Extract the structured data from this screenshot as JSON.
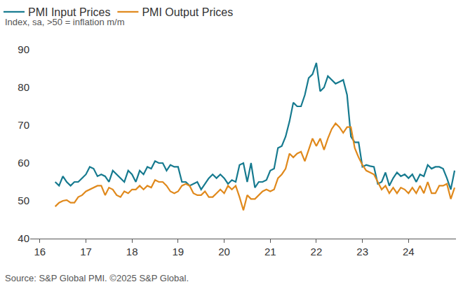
{
  "chart_data": {
    "type": "line",
    "subtitle": "Index, sa, >50 = inflation m/m",
    "source": "Source: S&P Global PMI. ©2025 S&P Global.",
    "x": [
      2016.333,
      2016.417,
      2016.5,
      2016.583,
      2016.667,
      2016.75,
      2016.833,
      2016.917,
      2017.0,
      2017.083,
      2017.167,
      2017.25,
      2017.333,
      2017.417,
      2017.5,
      2017.583,
      2017.667,
      2017.75,
      2017.833,
      2017.917,
      2018.0,
      2018.083,
      2018.167,
      2018.25,
      2018.333,
      2018.417,
      2018.5,
      2018.583,
      2018.667,
      2018.75,
      2018.833,
      2018.917,
      2019.0,
      2019.083,
      2019.167,
      2019.25,
      2019.333,
      2019.417,
      2019.5,
      2019.583,
      2019.667,
      2019.75,
      2019.833,
      2019.917,
      2020.0,
      2020.083,
      2020.167,
      2020.25,
      2020.333,
      2020.417,
      2020.5,
      2020.583,
      2020.667,
      2020.75,
      2020.833,
      2020.917,
      2021.0,
      2021.083,
      2021.167,
      2021.25,
      2021.333,
      2021.417,
      2021.5,
      2021.583,
      2021.667,
      2021.75,
      2021.833,
      2021.917,
      2022.0,
      2022.083,
      2022.167,
      2022.25,
      2022.333,
      2022.417,
      2022.5,
      2022.583,
      2022.667,
      2022.75,
      2022.833,
      2022.917,
      2023.0,
      2023.083,
      2023.167,
      2023.25,
      2023.333,
      2023.417,
      2023.5,
      2023.583,
      2023.667,
      2023.75,
      2023.833,
      2023.917,
      2024.0,
      2024.083,
      2024.167,
      2024.25,
      2024.333,
      2024.417,
      2024.5,
      2024.583,
      2024.667,
      2024.75,
      2024.833,
      2024.917,
      2025.0
    ],
    "series": [
      {
        "name": "PMI Input Prices",
        "color": "#167a8f",
        "values": [
          55,
          54,
          56.5,
          55,
          54,
          55,
          55,
          56,
          57,
          59,
          58.5,
          56.5,
          57,
          56.5,
          55,
          58,
          57,
          56,
          55,
          58,
          57,
          55,
          58,
          57,
          59,
          58.5,
          60.5,
          60,
          60,
          58,
          59.5,
          59,
          59,
          55,
          55,
          54,
          54.5,
          55,
          53,
          54.5,
          56,
          57,
          56,
          57,
          56,
          54.5,
          55.5,
          55,
          59.5,
          60,
          55,
          60,
          53.5,
          55,
          55,
          55.5,
          58,
          58.5,
          64,
          64.5,
          67,
          71,
          76,
          75,
          75,
          78,
          82.5,
          83.5,
          86.5,
          79,
          80,
          83,
          82,
          81,
          81.5,
          82,
          78,
          67,
          65.5,
          65.5,
          59,
          59.5,
          59.2,
          59,
          54.5,
          55,
          57.5,
          54,
          56,
          57.5,
          56.5,
          57,
          56,
          57,
          55,
          57,
          56.5,
          59.5,
          58.5,
          59,
          59,
          58.5,
          56,
          53,
          58
        ]
      },
      {
        "name": "PMI Output Prices",
        "color": "#e0891c",
        "values": [
          48.5,
          49.5,
          50,
          50.2,
          49.5,
          49.5,
          51,
          51.5,
          52.5,
          53,
          53.5,
          54,
          54,
          51.5,
          53.5,
          53,
          51.5,
          51,
          52.5,
          52,
          53,
          53,
          54,
          53,
          54,
          53.5,
          55.5,
          55,
          55,
          54,
          52.5,
          52,
          52.5,
          54,
          54.5,
          54,
          52,
          51.5,
          51.5,
          52.5,
          51,
          51,
          52,
          53,
          52,
          54,
          53,
          54,
          51,
          47.5,
          51.5,
          50.5,
          50.5,
          51.5,
          52.5,
          53,
          52.5,
          53,
          56,
          57,
          58.5,
          62.5,
          61.5,
          62.5,
          63,
          60.5,
          63.5,
          66.5,
          64.5,
          66.5,
          63.5,
          66.5,
          69,
          70.5,
          69.5,
          68,
          69.5,
          69.5,
          64,
          61.5,
          59.5,
          58,
          57.5,
          57,
          55,
          53,
          54,
          52,
          53.5,
          52,
          53.5,
          53,
          52,
          53.5,
          52,
          54,
          52,
          55,
          52,
          52,
          54,
          54,
          54.5,
          50.5,
          53.5
        ]
      }
    ],
    "xlim": [
      2015.79,
      2025.03
    ],
    "xticks": [
      {
        "value": 2016,
        "label": "16"
      },
      {
        "value": 2017,
        "label": "17"
      },
      {
        "value": 2018,
        "label": "18"
      },
      {
        "value": 2019,
        "label": "19"
      },
      {
        "value": 2020,
        "label": "20"
      },
      {
        "value": 2021,
        "label": "21"
      },
      {
        "value": 2022,
        "label": "22"
      },
      {
        "value": 2023,
        "label": "23"
      },
      {
        "value": 2024,
        "label": "24"
      }
    ],
    "ylim": [
      40,
      90
    ],
    "yticks": [
      40,
      50,
      60,
      70,
      80,
      90
    ],
    "grid": false,
    "legend": "top-left"
  }
}
